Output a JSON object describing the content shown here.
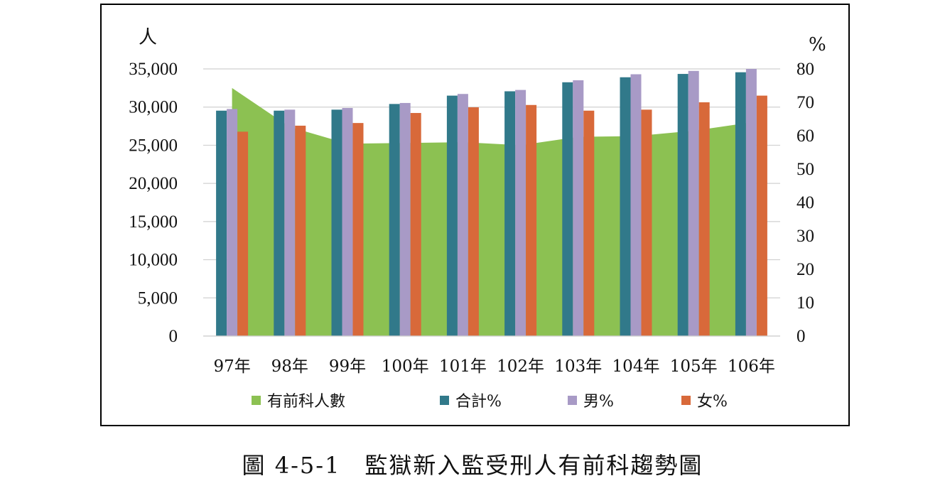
{
  "chart_data": {
    "type": "bar",
    "categories": [
      "97年",
      "98年",
      "99年",
      "100年",
      "101年",
      "102年",
      "103年",
      "104年",
      "105年",
      "106年"
    ],
    "left_axis": {
      "unit": "人",
      "ylim": [
        0,
        35000
      ],
      "ticks": [
        "0",
        "5,000",
        "10,000",
        "15,000",
        "20,000",
        "25,000",
        "30,000",
        "35,000"
      ],
      "tick_values": [
        0,
        5000,
        10000,
        15000,
        20000,
        25000,
        30000,
        35000
      ]
    },
    "right_axis": {
      "unit": "%",
      "ylim": [
        0,
        80
      ],
      "ticks": [
        "0",
        "10",
        "20",
        "30",
        "40",
        "50",
        "60",
        "70",
        "80"
      ],
      "tick_values": [
        0,
        10,
        20,
        30,
        40,
        50,
        60,
        70,
        80
      ]
    },
    "area_series": {
      "name": "有前科人數",
      "axis": "left",
      "color": "#8cc152",
      "values": [
        32500,
        27400,
        25200,
        25300,
        25400,
        25000,
        26100,
        26200,
        26900,
        28000
      ]
    },
    "series": [
      {
        "name": "合計%",
        "axis": "right",
        "color": "#31798a",
        "values": [
          67.5,
          67.5,
          67.8,
          69.5,
          72.0,
          73.3,
          76.0,
          77.5,
          78.5,
          79.0
        ]
      },
      {
        "name": "男%",
        "axis": "right",
        "color": "#a89ac6",
        "values": [
          68.0,
          67.8,
          68.3,
          69.8,
          72.5,
          73.7,
          76.6,
          78.4,
          79.4,
          80.0
        ]
      },
      {
        "name": "女%",
        "axis": "right",
        "color": "#d8693a",
        "values": [
          61.2,
          63.0,
          63.8,
          66.8,
          68.5,
          69.2,
          67.5,
          67.8,
          70.0,
          72.0
        ]
      }
    ],
    "grid": true,
    "legend": "bottom"
  },
  "caption": "圖 4-5-1　監獄新入監受刑人有前科趨勢圖"
}
